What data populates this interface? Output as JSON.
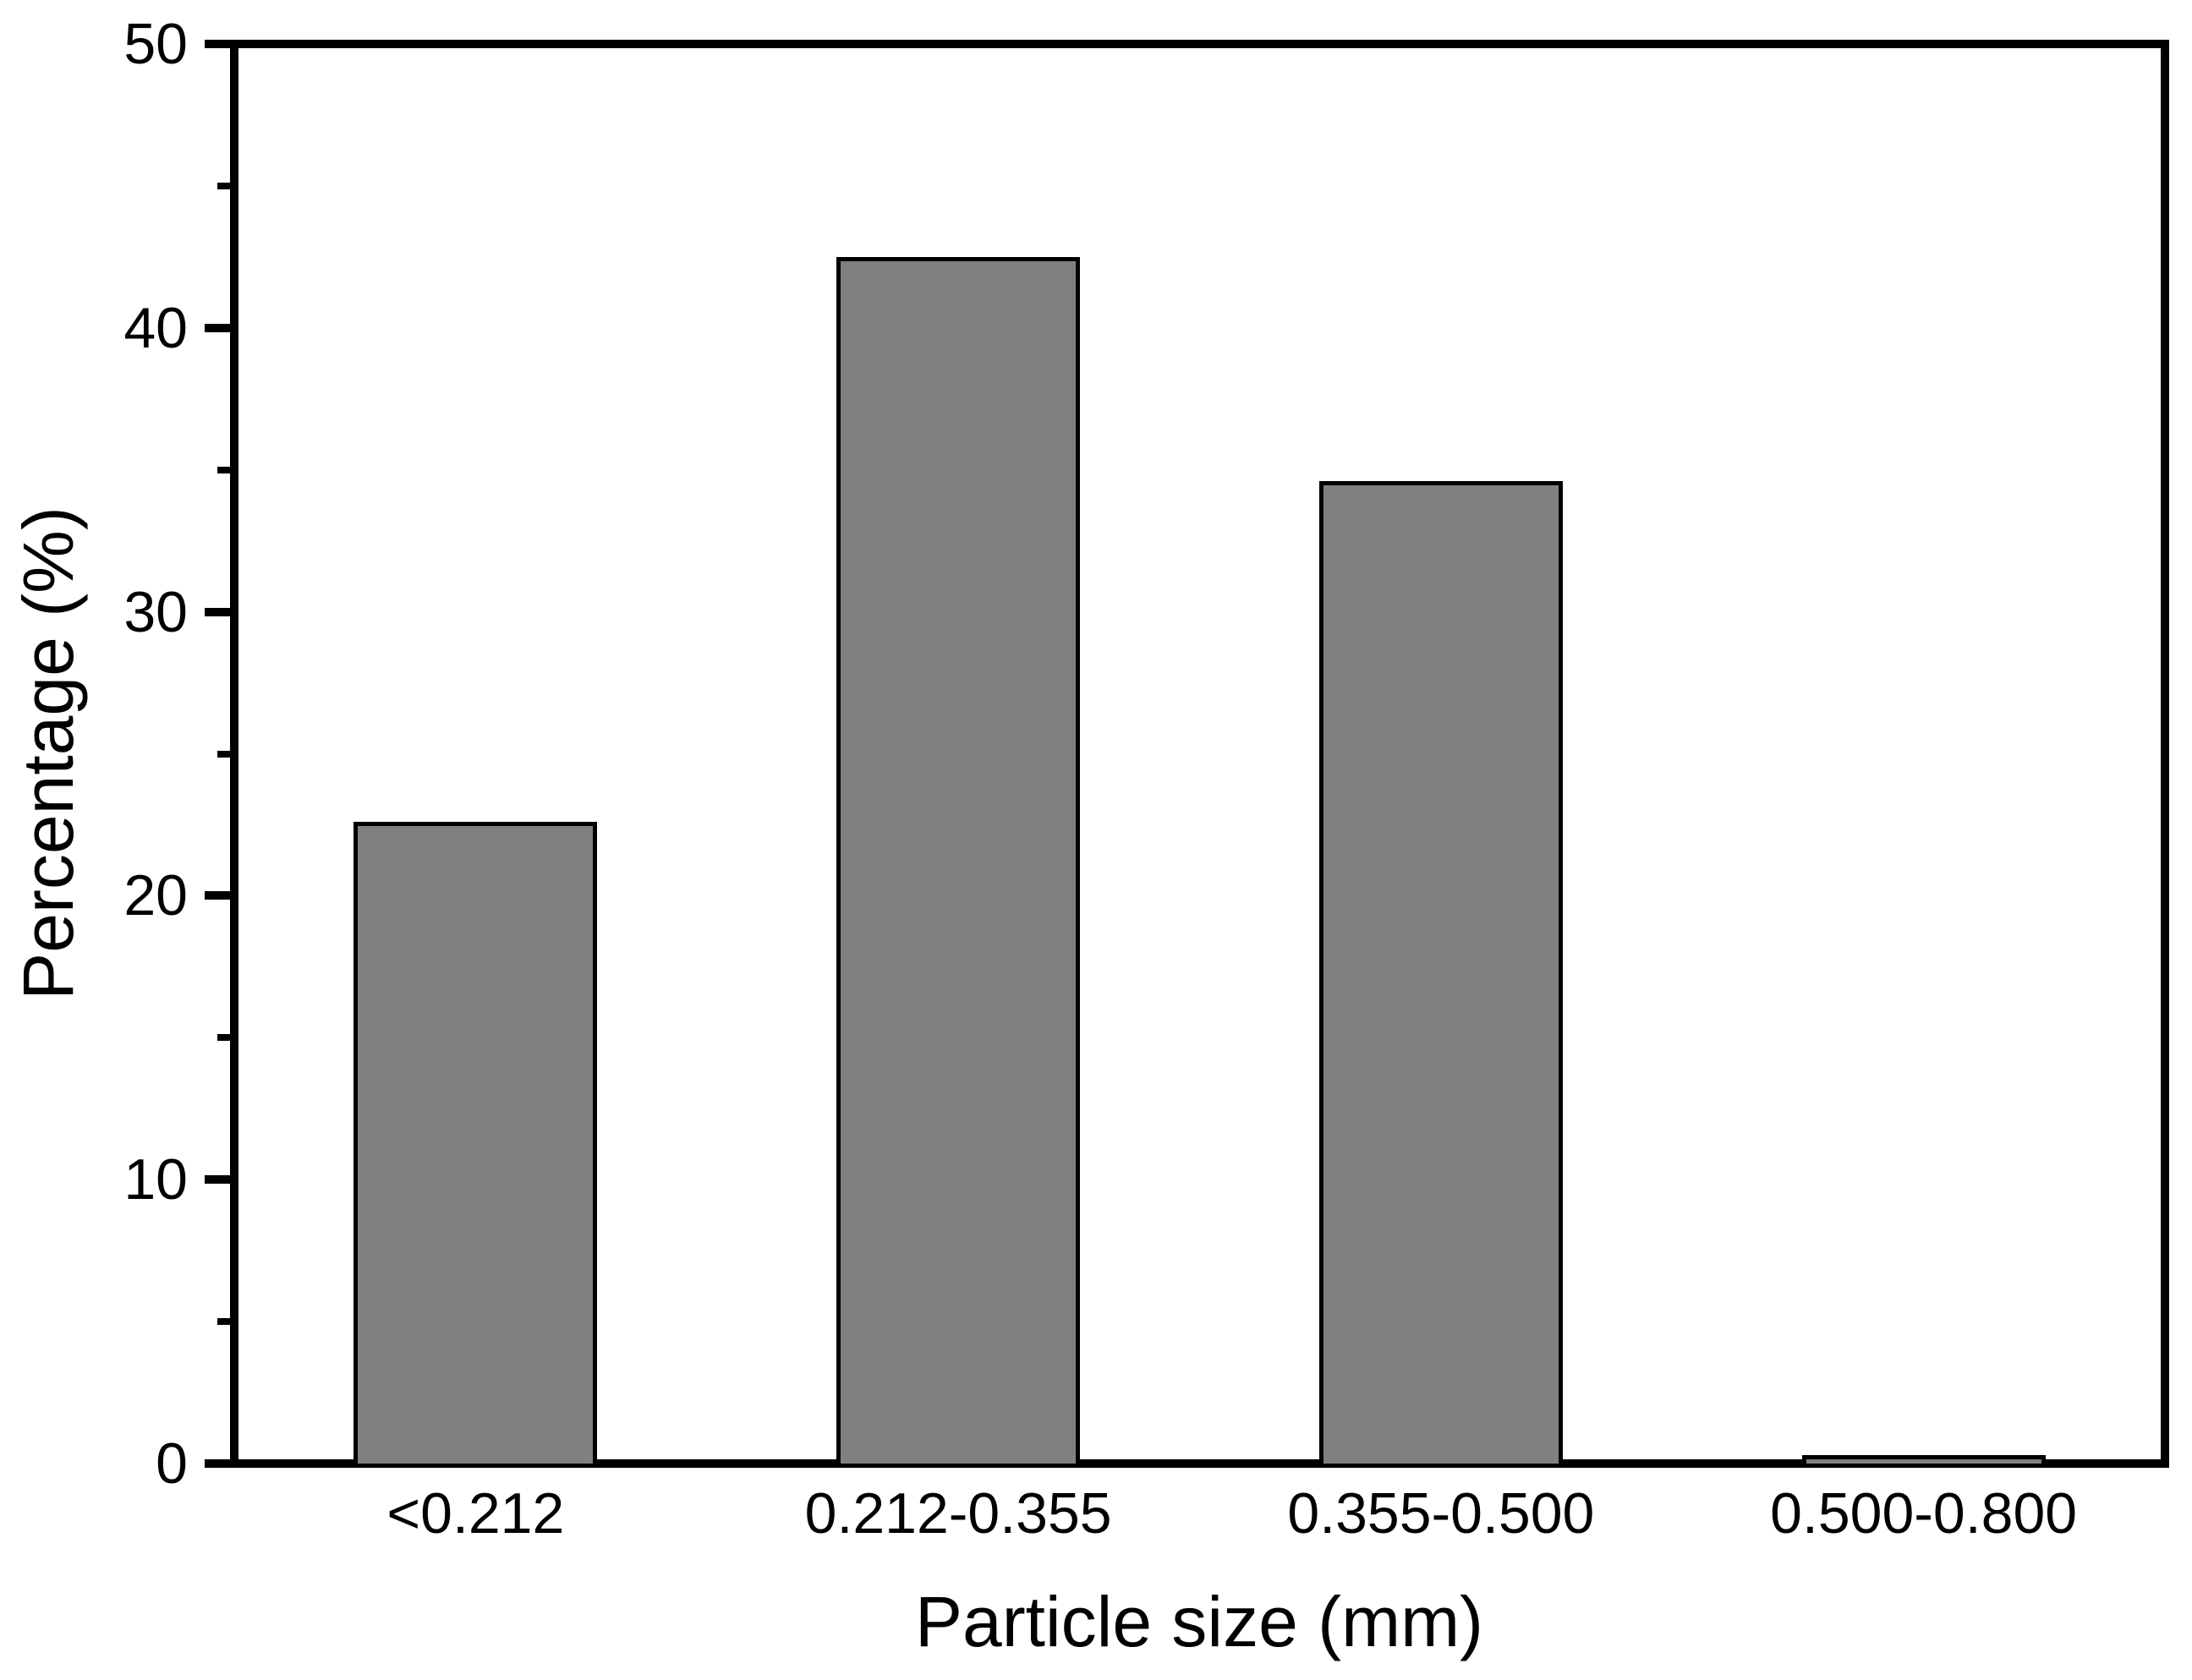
{
  "figure": {
    "background_color": "#ffffff",
    "axis_color": "#000000",
    "text_color": "#000000"
  },
  "chart_data": {
    "type": "bar",
    "title": "",
    "xlabel": "Particle size (mm)",
    "ylabel": "Percentage (%)",
    "categories": [
      "<0.212",
      "0.212-0.355",
      "0.355-0.500",
      "0.500-0.800"
    ],
    "values": [
      22.6,
      42.5,
      34.6,
      0.3
    ],
    "ylim": [
      0,
      50
    ],
    "yticks_major": [
      0,
      10,
      20,
      30,
      40,
      50
    ],
    "ytick_labels": [
      "0",
      "10",
      "20",
      "30",
      "40",
      "50"
    ],
    "yticks_minor": [
      5,
      15,
      25,
      35,
      45
    ],
    "xticks": "none",
    "grid": false,
    "legend_position": "none",
    "bar_fill_color": "#808080",
    "bar_edge_color": "#000000",
    "series_name": "Percentage"
  }
}
